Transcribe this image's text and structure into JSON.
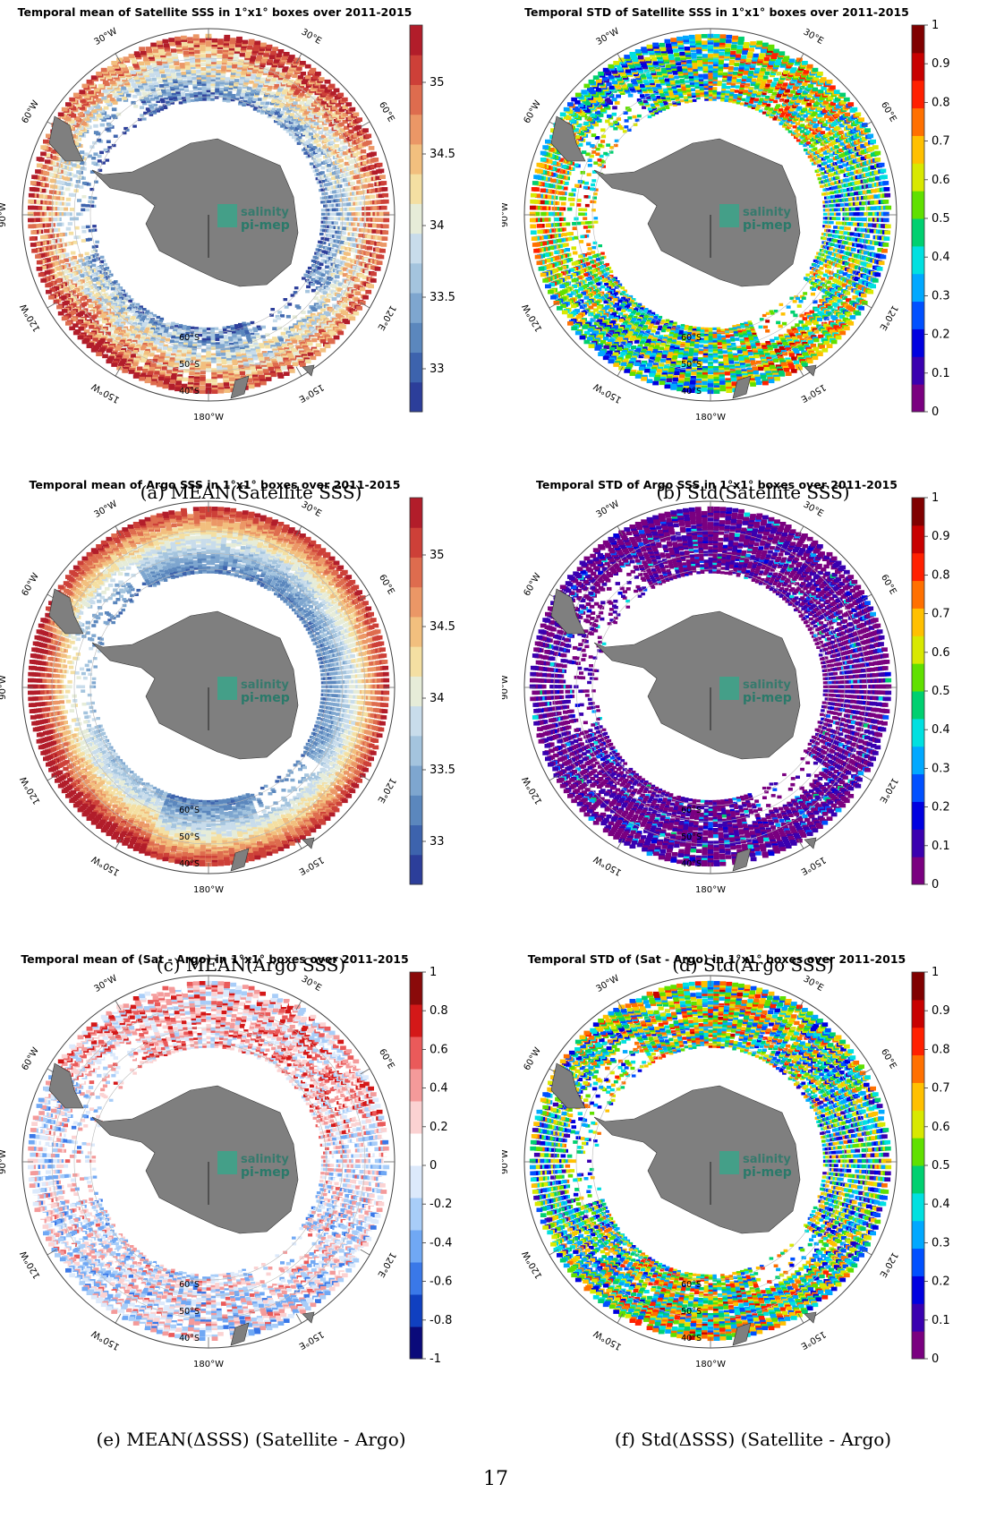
{
  "page_number": "17",
  "colors": {
    "land": "#7f7f7f",
    "logo_text": "#2a7a6a",
    "logo_box": "#3aa58a"
  },
  "logo": {
    "line1": "salinity",
    "line2": "pi-mep"
  },
  "lon_labels": [
    "30°W",
    "30°E",
    "60°W",
    "60°E",
    "90°W",
    "120°W",
    "120°E",
    "150°W",
    "150°E",
    "180°W"
  ],
  "lat_labels": [
    "60°S",
    "50°S",
    "40°S"
  ],
  "panels": [
    {
      "id": "a",
      "title": "Temporal mean of Satellite SSS in 1°x1° boxes over 2011-2015",
      "caption": "(a) MEAN(Satellite SSS)",
      "colormap": "diverging-rdylbu",
      "field": "satellite-mean",
      "colorbar_ticks": [
        "35",
        "34.5",
        "34",
        "33.5",
        "33"
      ],
      "colorbar_range": [
        32.7,
        35.4
      ]
    },
    {
      "id": "b",
      "title": "Temporal STD of Satellite SSS in 1°x1° boxes over 2011-2015",
      "caption": "(b) Std(Satellite SSS)",
      "colormap": "jet",
      "field": "satellite-std",
      "colorbar_ticks": [
        "1",
        "0.9",
        "0.8",
        "0.7",
        "0.6",
        "0.5",
        "0.4",
        "0.3",
        "0.2",
        "0.1",
        "0"
      ],
      "colorbar_range": [
        0,
        1
      ]
    },
    {
      "id": "c",
      "title": "Temporal mean of Argo SSS in 1°x1° boxes over 2011-2015",
      "caption": "(c) MEAN(Argo SSS)",
      "colormap": "diverging-rdylbu",
      "field": "argo-mean",
      "colorbar_ticks": [
        "35",
        "34.5",
        "34",
        "33.5",
        "33"
      ],
      "colorbar_range": [
        32.7,
        35.4
      ]
    },
    {
      "id": "d",
      "title": "Temporal STD of Argo SSS in 1°x1° boxes over 2011-2015",
      "caption": "(d) Std(Argo SSS)",
      "colormap": "jet",
      "field": "argo-std",
      "colorbar_ticks": [
        "1",
        "0.9",
        "0.8",
        "0.7",
        "0.6",
        "0.5",
        "0.4",
        "0.3",
        "0.2",
        "0.1",
        "0"
      ],
      "colorbar_range": [
        0,
        1
      ]
    },
    {
      "id": "e",
      "title": "Temporal mean of (Sat - Argo) in 1°x1° boxes over 2011-2015",
      "caption": "(e) MEAN(ΔSSS) (Satellite - Argo)",
      "colormap": "diverging-bwr",
      "field": "diff-mean",
      "colorbar_ticks": [
        "1",
        "0.8",
        "0.6",
        "0.4",
        "0.2",
        "0",
        "-0.2",
        "-0.4",
        "-0.6",
        "-0.8",
        "-1"
      ],
      "colorbar_range": [
        -1,
        1
      ]
    },
    {
      "id": "f",
      "title": "Temporal STD of (Sat - Argo) in 1°x1° boxes over 2011-2015",
      "caption": "(f) Std(ΔSSS) (Satellite - Argo)",
      "colormap": "jet",
      "field": "diff-std",
      "colorbar_ticks": [
        "1",
        "0.9",
        "0.8",
        "0.7",
        "0.6",
        "0.5",
        "0.4",
        "0.3",
        "0.2",
        "0.1",
        "0"
      ],
      "colorbar_range": [
        0,
        1
      ]
    }
  ]
}
